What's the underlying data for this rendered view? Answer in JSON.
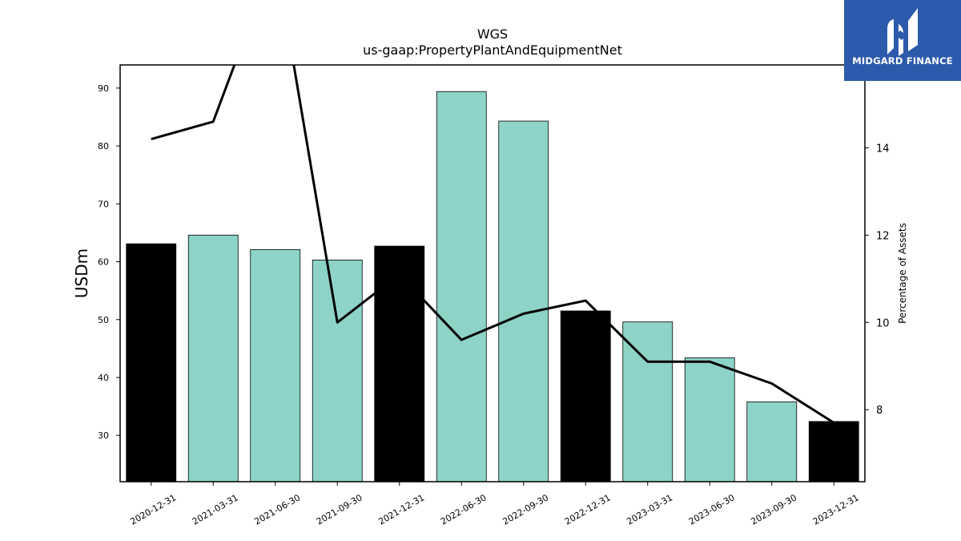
{
  "chart_data": {
    "type": "bar",
    "title": "WGS",
    "subtitle": "us-gaap:PropertyPlantAndEquipmentNet",
    "ylabel": "USDm",
    "ylabel_right": "Percentage of Assets",
    "categories": [
      "2020-12-31",
      "2021-03-31",
      "2021-06-30",
      "2021-09-30",
      "2021-12-31",
      "2022-06-30",
      "2022-09-30",
      "2022-12-31",
      "2023-03-31",
      "2023-06-30",
      "2023-09-30",
      "2023-12-31"
    ],
    "values": [
      63.1,
      64.6,
      62.1,
      60.3,
      62.7,
      89.4,
      84.3,
      51.5,
      49.6,
      43.4,
      35.8,
      32.4
    ],
    "bar_colors": [
      "#000000",
      "#8dd3c7",
      "#8dd3c7",
      "#8dd3c7",
      "#000000",
      "#8dd3c7",
      "#8dd3c7",
      "#000000",
      "#8dd3c7",
      "#8dd3c7",
      "#8dd3c7",
      "#000000"
    ],
    "ylim": [
      22,
      94
    ],
    "yticks": [
      30,
      40,
      50,
      60,
      70,
      80,
      90
    ],
    "line_series": {
      "values": [
        14.2,
        14.6,
        18.4,
        10.0,
        11.1,
        9.6,
        10.2,
        10.5,
        9.1,
        9.1,
        8.6,
        7.7
      ],
      "color": "#000000"
    },
    "ylim_right": [
      6.35,
      15.9
    ],
    "yticks_right": [
      8,
      10,
      12,
      14
    ],
    "grid": false
  },
  "logo": {
    "text": "MIDGARD FINANCE",
    "background": "#2d5aab"
  }
}
